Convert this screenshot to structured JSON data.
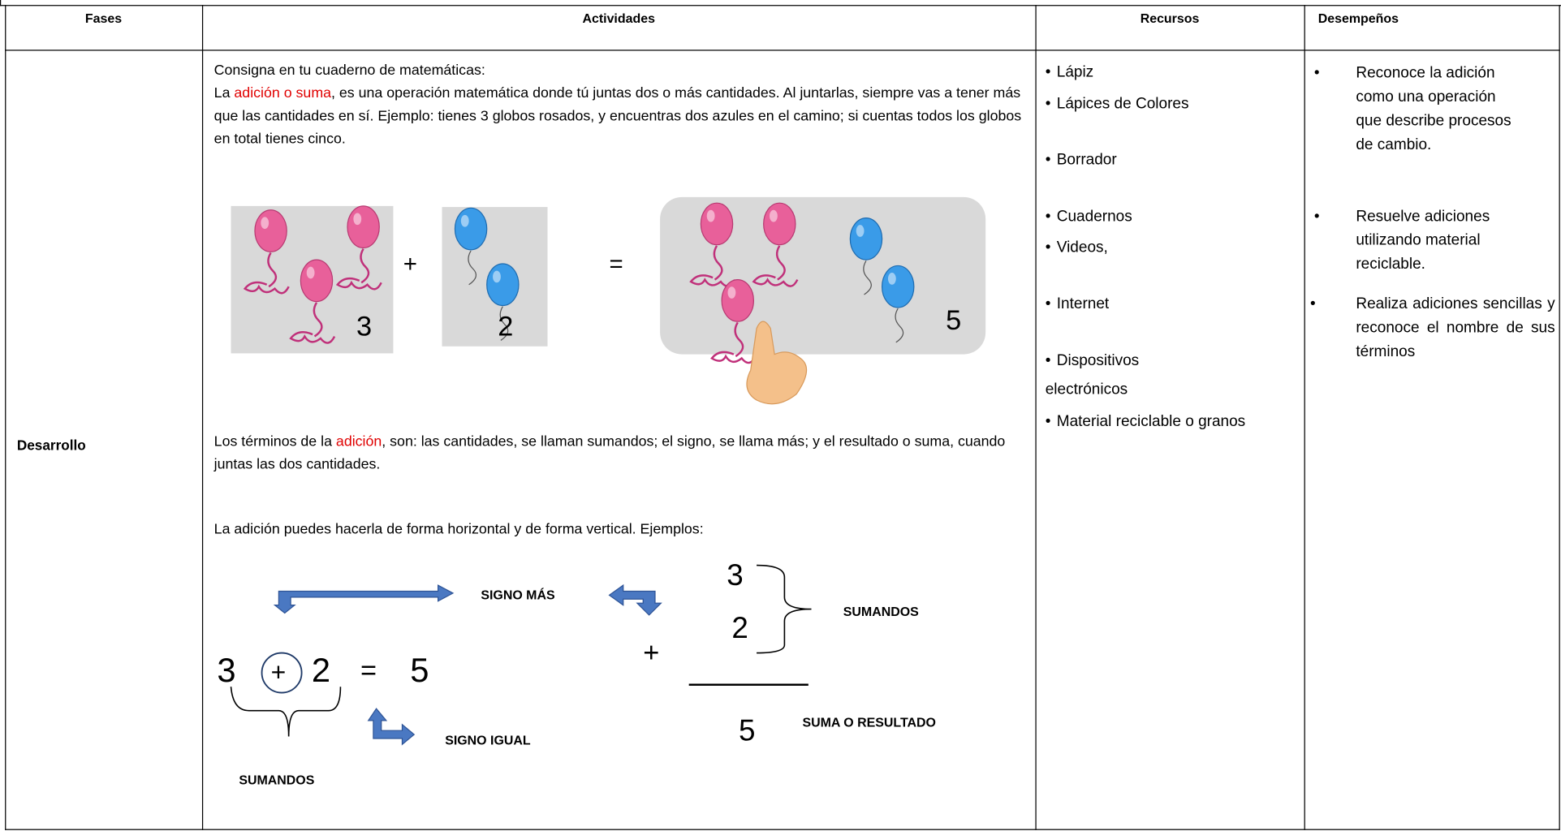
{
  "table": {
    "headers": [
      "Fases",
      "Actividades",
      "Recursos",
      "Desempeños"
    ],
    "phase": "Desarrollo",
    "activities": {
      "intro": "Consigna en tu cuaderno de matemáticas:",
      "definition": [
        "La ",
        "adición o suma",
        ", es una operación matemática donde tú juntas dos o más cantidades. Al juntarlas, siempre vas a tener más que las cantidades en sí. Ejemplo: tienes 3 globos rosados, y encuentras dos azules en el camino; si cuentas todos los globos en total tienes cinco."
      ],
      "example": {
        "first": "3",
        "plus": "+",
        "second": "2",
        "equals": "=",
        "total": "5"
      },
      "terms": [
        "Los términos de la ",
        "adición",
        ", son: las cantidades, se llaman sumandos; el signo, se llama más; y el resultado o suma, cuando juntas las dos cantidades."
      ],
      "forms": "La adición puedes hacerla de forma horizontal y de forma vertical. Ejemplos:",
      "horizontal": {
        "first": "3",
        "plus": "+",
        "second": "2",
        "equals": "=",
        "result": "5",
        "plus_label": "SIGNO MÁS",
        "equals_label": "SIGNO IGUAL",
        "addends_label": "SUMANDOS"
      },
      "vertical": {
        "first": "3",
        "plus": "+",
        "second": "2",
        "result": "5",
        "addends_label": "SUMANDOS",
        "result_label": "SUMA O RESULTADO"
      }
    },
    "resources": [
      "Lápiz",
      "Lápices de Colores",
      "Borrador",
      "Cuadernos",
      "Videos,",
      "Internet",
      "Dispositivos electrónicos",
      "Material reciclable o granos"
    ],
    "performances": [
      "Reconoce la adición como una operación que describe procesos de cambio.",
      "Resuelve adiciones utilizando material reciclable.",
      "Realiza adiciones sencillas y reconoce el nombre de sus términos"
    ]
  }
}
